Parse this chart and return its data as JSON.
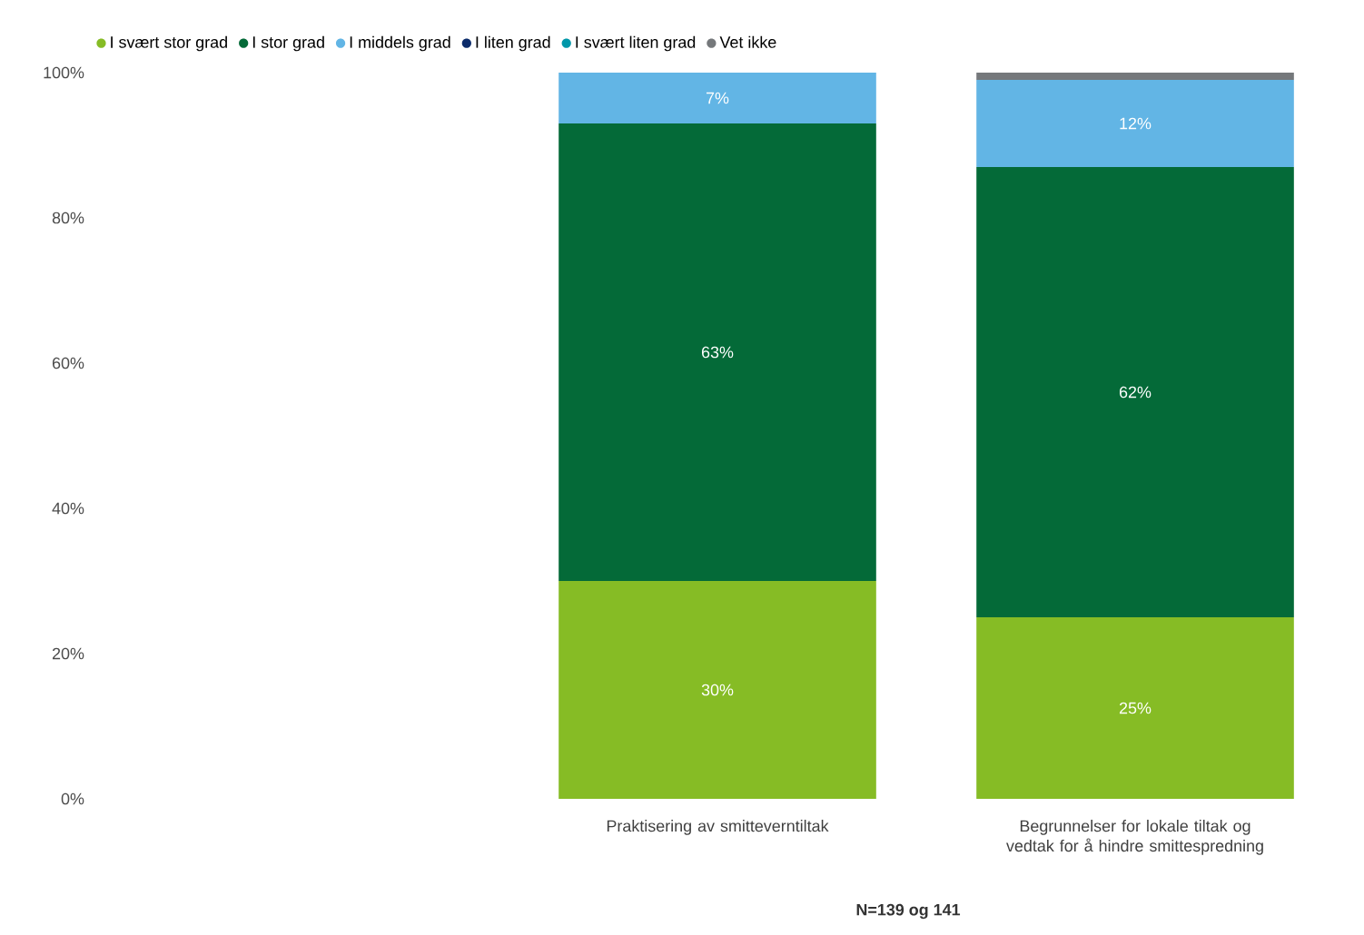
{
  "chart_data": {
    "type": "bar",
    "stacked": true,
    "categories": [
      null,
      "Praktisering av smitteverntiltak",
      "Begrunnelser for lokale tiltak og vedtak for å hindre smittespredning"
    ],
    "series": [
      {
        "name": "I svært stor grad",
        "color": "#86bc25",
        "values": [
          null,
          30,
          25
        ],
        "value_labels": [
          null,
          "30%",
          "25%"
        ]
      },
      {
        "name": "I stor grad",
        "color": "#046a38",
        "values": [
          null,
          63,
          62
        ],
        "value_labels": [
          null,
          "63%",
          "62%"
        ]
      },
      {
        "name": "I middels grad",
        "color": "#62b5e5",
        "values": [
          null,
          7,
          12
        ],
        "value_labels": [
          null,
          "7%",
          "12%"
        ]
      },
      {
        "name": "I liten grad",
        "color": "#0c2c6b",
        "values": [
          null,
          0,
          0
        ]
      },
      {
        "name": "I svært liten grad",
        "color": "#0097a9",
        "values": [
          null,
          0,
          0
        ]
      },
      {
        "name": "Vet ikke",
        "color": "#75787b",
        "values": [
          null,
          0,
          1
        ]
      }
    ],
    "ylim": [
      0,
      100
    ],
    "yticks": [
      {
        "value": 0,
        "label": "0%"
      },
      {
        "value": 20,
        "label": "20%"
      },
      {
        "value": 40,
        "label": "40%"
      },
      {
        "value": 60,
        "label": "60%"
      },
      {
        "value": 80,
        "label": "80%"
      },
      {
        "value": 100,
        "label": "100%"
      }
    ],
    "grid": false,
    "legend": "top left",
    "annotations": [
      "**N=139 og 141**"
    ]
  }
}
